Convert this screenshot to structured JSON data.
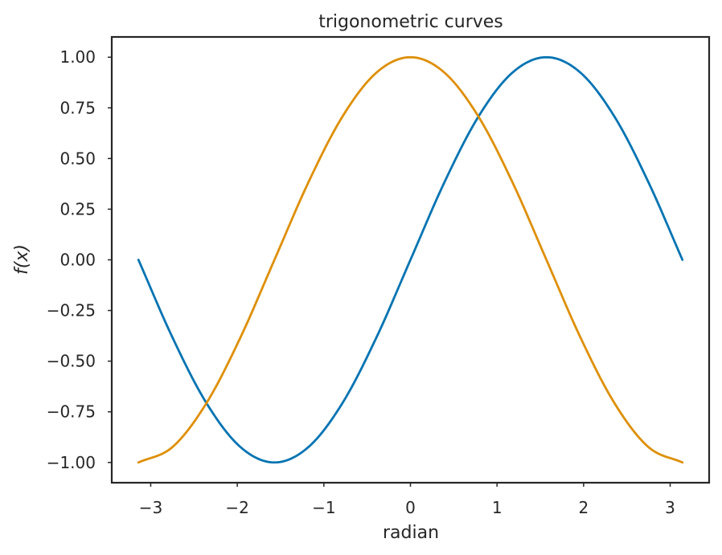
{
  "chart_data": {
    "type": "line",
    "title": "trigonometric curves",
    "xlabel": "radian",
    "ylabel": "f(x)",
    "xlim": [
      -3.45,
      3.45
    ],
    "ylim": [
      -1.1,
      1.1
    ],
    "x_ticks": [
      -3,
      -2,
      -1,
      0,
      1,
      2,
      3
    ],
    "x_tick_labels": [
      "−3",
      "−2",
      "−1",
      "0",
      "1",
      "2",
      "3"
    ],
    "y_ticks": [
      1.0,
      0.75,
      0.5,
      0.25,
      0.0,
      -0.25,
      -0.5,
      -0.75,
      -1.0
    ],
    "y_tick_labels": [
      "1.00",
      "0.75",
      "0.50",
      "0.25",
      "0.00",
      "−0.25",
      "−0.50",
      "−0.75",
      "−1.00"
    ],
    "grid": false,
    "x": [
      -3.1416,
      -2.7489,
      -2.3562,
      -1.9635,
      -1.5708,
      -1.1781,
      -0.7854,
      -0.3927,
      0.0,
      0.3927,
      0.7854,
      1.1781,
      1.5708,
      1.9635,
      2.3562,
      2.7489,
      3.1416
    ],
    "series": [
      {
        "color": "#0173b2",
        "values": [
          0.0,
          -0.383,
          -0.707,
          -0.924,
          -1.0,
          -0.924,
          -0.707,
          -0.383,
          0.0,
          0.383,
          0.707,
          0.924,
          1.0,
          0.924,
          0.707,
          0.383,
          0.0
        ]
      },
      {
        "color": "#de8f05",
        "values": [
          -1.0,
          -0.924,
          -0.707,
          -0.383,
          0.0,
          0.383,
          0.707,
          0.924,
          1.0,
          0.924,
          0.707,
          0.383,
          0.0,
          -0.383,
          -0.707,
          -0.924,
          -1.0
        ]
      }
    ]
  }
}
